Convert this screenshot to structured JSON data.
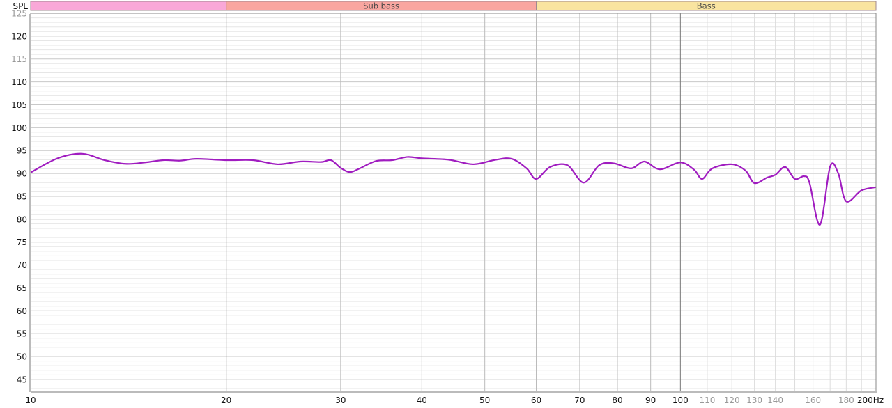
{
  "chart_data": {
    "type": "line",
    "ylabel": "SPL",
    "xunit": "Hz",
    "xscale": "log",
    "xlim": [
      10,
      200
    ],
    "ylim": [
      42.4,
      125
    ],
    "grid": true,
    "x_ticks": [
      {
        "v": 10,
        "label": "10",
        "major": true
      },
      {
        "v": 20,
        "label": "20",
        "major": true
      },
      {
        "v": 30,
        "label": "30",
        "major": true
      },
      {
        "v": 40,
        "label": "40",
        "major": true
      },
      {
        "v": 50,
        "label": "50",
        "major": true
      },
      {
        "v": 60,
        "label": "60",
        "major": true
      },
      {
        "v": 70,
        "label": "70",
        "major": true
      },
      {
        "v": 80,
        "label": "80",
        "major": true
      },
      {
        "v": 90,
        "label": "90",
        "major": true
      },
      {
        "v": 100,
        "label": "100",
        "major": true
      },
      {
        "v": 110,
        "label": "110",
        "major": false
      },
      {
        "v": 120,
        "label": "120",
        "major": false
      },
      {
        "v": 130,
        "label": "130",
        "major": false
      },
      {
        "v": 140,
        "label": "140",
        "major": false
      },
      {
        "v": 160,
        "label": "160",
        "major": false
      },
      {
        "v": 180,
        "label": "180",
        "major": false
      },
      {
        "v": 200,
        "label": "200Hz",
        "major": true
      }
    ],
    "y_ticks": [
      {
        "v": 125,
        "label": "125",
        "major": false
      },
      {
        "v": 120,
        "label": "120",
        "major": true
      },
      {
        "v": 115,
        "label": "115",
        "major": false
      },
      {
        "v": 110,
        "label": "110",
        "major": true
      },
      {
        "v": 105,
        "label": "105",
        "major": true
      },
      {
        "v": 100,
        "label": "100",
        "major": true
      },
      {
        "v": 95,
        "label": "95",
        "major": true
      },
      {
        "v": 90,
        "label": "90",
        "major": true
      },
      {
        "v": 85,
        "label": "85",
        "major": true
      },
      {
        "v": 80,
        "label": "80",
        "major": true
      },
      {
        "v": 75,
        "label": "75",
        "major": true
      },
      {
        "v": 70,
        "label": "70",
        "major": true
      },
      {
        "v": 65,
        "label": "65",
        "major": true
      },
      {
        "v": 60,
        "label": "60",
        "major": true
      },
      {
        "v": 55,
        "label": "55",
        "major": true
      },
      {
        "v": 50,
        "label": "50",
        "major": true
      },
      {
        "v": 45,
        "label": "45",
        "major": true
      }
    ],
    "bands": [
      {
        "from": 10,
        "to": 20,
        "label": "",
        "color": "#f9a8d8"
      },
      {
        "from": 20,
        "to": 60,
        "label": "Sub bass",
        "color": "#f9a6a0"
      },
      {
        "from": 60,
        "to": 200,
        "label": "Bass",
        "color": "#f9e4a0"
      }
    ],
    "series": [
      {
        "color": "#a01cc0",
        "x": [
          10,
          11,
          12,
          13,
          14,
          15,
          16,
          17,
          18,
          20,
          22,
          24,
          26,
          28,
          29,
          30,
          31,
          32,
          34,
          36,
          38,
          40,
          44,
          48,
          52,
          55,
          58,
          60,
          63,
          67,
          71,
          75,
          79,
          84,
          88,
          93,
          100,
          105,
          108,
          112,
          120,
          126,
          130,
          136,
          140,
          145,
          150,
          155,
          158,
          164,
          170,
          175,
          180,
          190,
          200
        ],
        "y": [
          90.2,
          93.3,
          94.3,
          92.9,
          92.1,
          92.4,
          92.9,
          92.8,
          93.2,
          92.9,
          92.9,
          92.0,
          92.6,
          92.5,
          92.9,
          91.2,
          90.3,
          91.0,
          92.7,
          92.9,
          93.6,
          93.3,
          93.0,
          92.0,
          93.0,
          93.2,
          91.1,
          88.8,
          91.4,
          91.8,
          88.0,
          91.8,
          92.2,
          91.1,
          92.6,
          90.9,
          92.4,
          90.8,
          88.8,
          91.1,
          92.0,
          90.6,
          87.9,
          89.1,
          89.7,
          91.4,
          88.8,
          89.4,
          88.0,
          78.8,
          91.5,
          90.0,
          83.9,
          86.3,
          87.0
        ]
      }
    ]
  }
}
